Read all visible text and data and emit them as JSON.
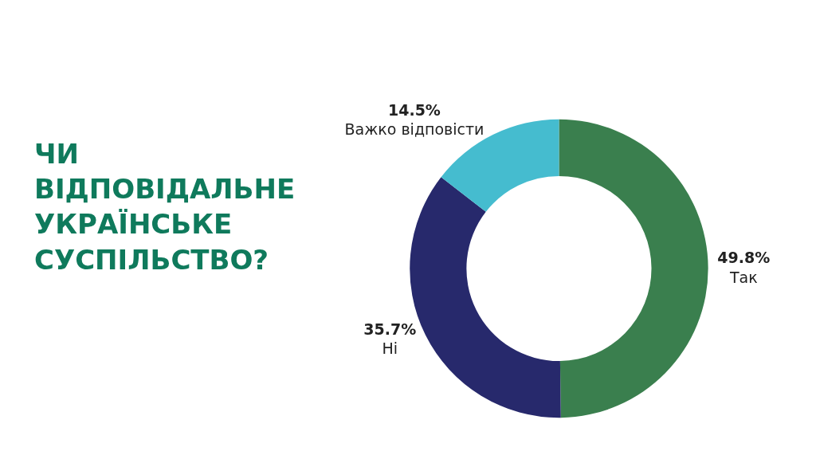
{
  "chart_data": {
    "type": "donut",
    "title": "ЧИ ВІДПОВІДАЛЬНЕ УКРАЇНСЬКЕ СУСПІЛЬСТВО?",
    "categories": [
      "Так",
      "Ні",
      "Важко відповісти"
    ],
    "values": [
      49.8,
      35.7,
      14.5
    ],
    "colors": [
      "#3a7f4e",
      "#27296c",
      "#45bccf"
    ],
    "value_labels": [
      "49.8%",
      "35.7%",
      "14.5%"
    ],
    "legend": false
  }
}
